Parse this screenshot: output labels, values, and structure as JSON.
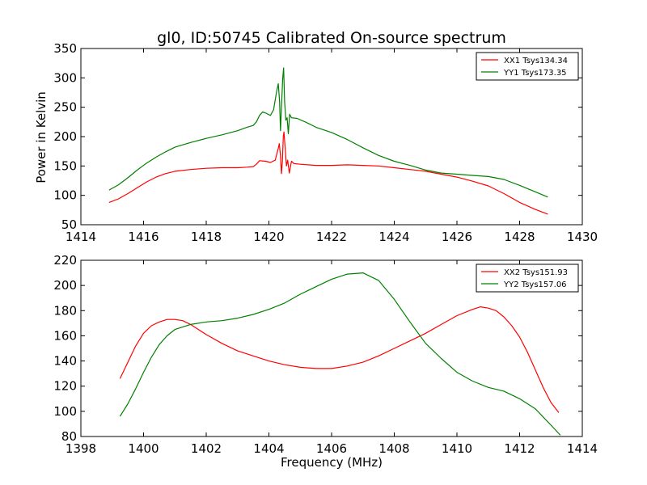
{
  "figure": {
    "title": "gl0, ID:50745 Calibrated On-source spectrum",
    "ylabel": "Power in Kelvin",
    "xlabel": "Frequency (MHz)"
  },
  "chart_data": [
    {
      "type": "line",
      "title": "gl0, ID:50745 Calibrated On-source spectrum",
      "xlabel": "",
      "ylabel": "Power in Kelvin",
      "xlim": [
        1414,
        1430
      ],
      "ylim": [
        50,
        350
      ],
      "xticks": [
        1414,
        1416,
        1418,
        1420,
        1422,
        1424,
        1426,
        1428,
        1430
      ],
      "yticks": [
        50,
        100,
        150,
        200,
        250,
        300,
        350
      ],
      "legend_position": "top-right",
      "grid": false,
      "series": [
        {
          "name": "XX1 Tsys134.34",
          "color": "#ff0000",
          "points": [
            [
              1414.9,
              88
            ],
            [
              1415.2,
              94
            ],
            [
              1415.5,
              103
            ],
            [
              1415.8,
              113
            ],
            [
              1416.1,
              123
            ],
            [
              1416.4,
              131
            ],
            [
              1416.7,
              137
            ],
            [
              1417.0,
              141
            ],
            [
              1417.5,
              144
            ],
            [
              1418.0,
              146
            ],
            [
              1418.5,
              147
            ],
            [
              1419.0,
              147
            ],
            [
              1419.3,
              148
            ],
            [
              1419.5,
              149
            ],
            [
              1419.6,
              153
            ],
            [
              1419.7,
              159
            ],
            [
              1419.9,
              158
            ],
            [
              1420.05,
              156
            ],
            [
              1420.2,
              160
            ],
            [
              1420.3,
              180
            ],
            [
              1420.33,
              188
            ],
            [
              1420.37,
              168
            ],
            [
              1420.4,
              137
            ],
            [
              1420.43,
              158
            ],
            [
              1420.46,
              200
            ],
            [
              1420.48,
              208
            ],
            [
              1420.52,
              180
            ],
            [
              1420.56,
              150
            ],
            [
              1420.6,
              160
            ],
            [
              1420.65,
              138
            ],
            [
              1420.72,
              158
            ],
            [
              1420.8,
              154
            ],
            [
              1421.0,
              153
            ],
            [
              1421.5,
              151
            ],
            [
              1422.0,
              151
            ],
            [
              1422.5,
              152
            ],
            [
              1423.0,
              151
            ],
            [
              1423.5,
              150
            ],
            [
              1424.0,
              147
            ],
            [
              1424.5,
              144
            ],
            [
              1425.0,
              141
            ],
            [
              1425.5,
              136
            ],
            [
              1426.0,
              131
            ],
            [
              1426.5,
              124
            ],
            [
              1427.0,
              116
            ],
            [
              1427.5,
              103
            ],
            [
              1428.0,
              88
            ],
            [
              1428.5,
              76
            ],
            [
              1428.9,
              68
            ]
          ]
        },
        {
          "name": "YY1 Tsys173.35",
          "color": "#008000",
          "points": [
            [
              1414.9,
              109
            ],
            [
              1415.2,
              118
            ],
            [
              1415.5,
              130
            ],
            [
              1415.8,
              143
            ],
            [
              1416.1,
              155
            ],
            [
              1416.4,
              165
            ],
            [
              1416.7,
              174
            ],
            [
              1417.0,
              182
            ],
            [
              1417.5,
              190
            ],
            [
              1418.0,
              197
            ],
            [
              1418.5,
              203
            ],
            [
              1419.0,
              210
            ],
            [
              1419.3,
              216
            ],
            [
              1419.5,
              219
            ],
            [
              1419.6,
              225
            ],
            [
              1419.7,
              236
            ],
            [
              1419.8,
              242
            ],
            [
              1419.9,
              240
            ],
            [
              1420.05,
              236
            ],
            [
              1420.15,
              246
            ],
            [
              1420.25,
              278
            ],
            [
              1420.3,
              290
            ],
            [
              1420.34,
              260
            ],
            [
              1420.37,
              210
            ],
            [
              1420.4,
              250
            ],
            [
              1420.44,
              300
            ],
            [
              1420.47,
              317
            ],
            [
              1420.5,
              260
            ],
            [
              1420.54,
              228
            ],
            [
              1420.58,
              232
            ],
            [
              1420.62,
              205
            ],
            [
              1420.66,
              238
            ],
            [
              1420.72,
              232
            ],
            [
              1420.9,
              231
            ],
            [
              1421.2,
              224
            ],
            [
              1421.5,
              216
            ],
            [
              1422.0,
              207
            ],
            [
              1422.5,
              195
            ],
            [
              1423.0,
              181
            ],
            [
              1423.5,
              168
            ],
            [
              1424.0,
              158
            ],
            [
              1424.5,
              151
            ],
            [
              1425.0,
              143
            ],
            [
              1425.5,
              138
            ],
            [
              1426.0,
              136
            ],
            [
              1426.5,
              134
            ],
            [
              1427.0,
              132
            ],
            [
              1427.5,
              127
            ],
            [
              1428.0,
              117
            ],
            [
              1428.5,
              106
            ],
            [
              1428.9,
              97
            ]
          ]
        }
      ]
    },
    {
      "type": "line",
      "title": "",
      "xlabel": "Frequency (MHz)",
      "ylabel": "",
      "xlim": [
        1398,
        1414
      ],
      "ylim": [
        80,
        220
      ],
      "xticks": [
        1398,
        1400,
        1402,
        1404,
        1406,
        1408,
        1410,
        1412,
        1414
      ],
      "yticks": [
        80,
        100,
        120,
        140,
        160,
        180,
        200,
        220
      ],
      "legend_position": "top-right",
      "grid": false,
      "series": [
        {
          "name": "XX2 Tsys151.93",
          "color": "#ff0000",
          "points": [
            [
              1399.25,
              126
            ],
            [
              1399.5,
              139
            ],
            [
              1399.75,
              152
            ],
            [
              1400.0,
              162
            ],
            [
              1400.25,
              168
            ],
            [
              1400.5,
              171
            ],
            [
              1400.75,
              173
            ],
            [
              1401.0,
              173
            ],
            [
              1401.25,
              172
            ],
            [
              1401.5,
              169
            ],
            [
              1401.75,
              165
            ],
            [
              1402.0,
              161
            ],
            [
              1402.5,
              154
            ],
            [
              1403.0,
              148
            ],
            [
              1403.5,
              144
            ],
            [
              1404.0,
              140
            ],
            [
              1404.5,
              137
            ],
            [
              1405.0,
              135
            ],
            [
              1405.5,
              134
            ],
            [
              1406.0,
              134
            ],
            [
              1406.5,
              136
            ],
            [
              1407.0,
              139
            ],
            [
              1407.5,
              144
            ],
            [
              1408.0,
              150
            ],
            [
              1408.5,
              156
            ],
            [
              1409.0,
              162
            ],
            [
              1409.5,
              169
            ],
            [
              1410.0,
              176
            ],
            [
              1410.5,
              181
            ],
            [
              1410.75,
              183
            ],
            [
              1411.0,
              182
            ],
            [
              1411.25,
              180
            ],
            [
              1411.5,
              175
            ],
            [
              1411.75,
              168
            ],
            [
              1412.0,
              159
            ],
            [
              1412.25,
              147
            ],
            [
              1412.5,
              133
            ],
            [
              1412.75,
              119
            ],
            [
              1413.0,
              107
            ],
            [
              1413.25,
              99
            ]
          ]
        },
        {
          "name": "YY2 Tsys157.06",
          "color": "#008000",
          "points": [
            [
              1399.25,
              96
            ],
            [
              1399.5,
              106
            ],
            [
              1399.75,
              118
            ],
            [
              1400.0,
              131
            ],
            [
              1400.25,
              143
            ],
            [
              1400.5,
              153
            ],
            [
              1400.75,
              160
            ],
            [
              1401.0,
              165
            ],
            [
              1401.5,
              169
            ],
            [
              1402.0,
              171
            ],
            [
              1402.5,
              172
            ],
            [
              1403.0,
              174
            ],
            [
              1403.5,
              177
            ],
            [
              1404.0,
              181
            ],
            [
              1404.5,
              186
            ],
            [
              1405.0,
              193
            ],
            [
              1405.5,
              199
            ],
            [
              1406.0,
              205
            ],
            [
              1406.5,
              209
            ],
            [
              1407.0,
              210
            ],
            [
              1407.5,
              204
            ],
            [
              1408.0,
              189
            ],
            [
              1408.5,
              171
            ],
            [
              1409.0,
              154
            ],
            [
              1409.5,
              142
            ],
            [
              1410.0,
              131
            ],
            [
              1410.5,
              124
            ],
            [
              1411.0,
              119
            ],
            [
              1411.5,
              116
            ],
            [
              1412.0,
              110
            ],
            [
              1412.5,
              102
            ],
            [
              1413.0,
              89
            ],
            [
              1413.3,
              81
            ]
          ]
        }
      ]
    }
  ]
}
